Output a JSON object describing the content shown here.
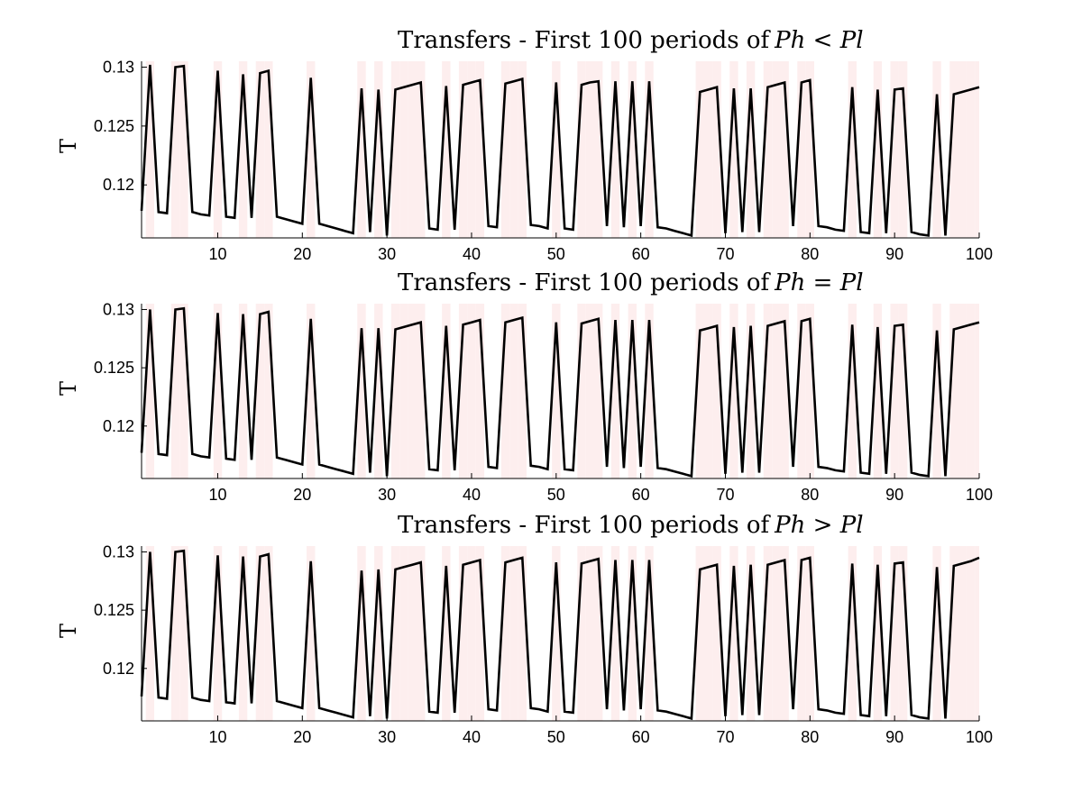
{
  "colors": {
    "band": "#fdeeee",
    "line": "#000000",
    "axis": "#000000",
    "background": "#ffffff"
  },
  "chart_data": [
    {
      "type": "line",
      "title": "Transfers - First 100 periods of",
      "title_math": "Ph < Pl",
      "ylabel": "T",
      "xlim": [
        1,
        100
      ],
      "ylim": [
        0.1155,
        0.1305
      ],
      "xticks": [
        10,
        20,
        30,
        40,
        50,
        60,
        70,
        80,
        90,
        100
      ],
      "yticks": [
        0.12,
        0.125,
        0.13
      ],
      "ytick_labels": [
        "0.12",
        "0.125",
        "0.13"
      ],
      "high_state_periods": [
        2,
        5,
        6,
        10,
        13,
        15,
        16,
        21,
        27,
        29,
        31,
        32,
        33,
        34,
        37,
        39,
        40,
        41,
        44,
        45,
        46,
        50,
        53,
        54,
        55,
        57,
        59,
        61,
        67,
        68,
        69,
        71,
        73,
        75,
        76,
        77,
        79,
        80,
        85,
        88,
        90,
        91,
        95,
        97,
        98,
        99,
        100
      ],
      "grid": false,
      "series": [
        {
          "x": [
            1,
            2,
            3,
            4,
            5,
            6,
            7,
            8,
            9,
            10,
            11,
            12,
            13,
            14,
            15,
            16,
            17,
            18,
            19,
            20,
            21,
            22,
            23,
            24,
            25,
            26,
            27,
            28,
            29,
            30,
            31,
            32,
            33,
            34,
            35,
            36,
            37,
            38,
            39,
            40,
            41,
            42,
            43,
            44,
            45,
            46,
            47,
            48,
            49,
            50,
            51,
            52,
            53,
            54,
            55,
            56,
            57,
            58,
            59,
            60,
            61,
            62,
            63,
            64,
            65,
            66,
            67,
            68,
            69,
            70,
            71,
            72,
            73,
            74,
            75,
            76,
            77,
            78,
            79,
            80,
            81,
            82,
            83,
            84,
            85,
            86,
            87,
            88,
            89,
            90,
            91,
            92,
            93,
            94,
            95,
            96,
            97,
            98,
            99,
            100
          ],
          "values": [
            0.1178,
            0.1302,
            0.1177,
            0.1176,
            0.13,
            0.1301,
            0.1177,
            0.1175,
            0.1174,
            0.1297,
            0.1173,
            0.1172,
            0.1294,
            0.1172,
            0.1295,
            0.1297,
            0.1173,
            0.1171,
            0.1169,
            0.1167,
            0.1291,
            0.1167,
            0.1165,
            0.1163,
            0.1161,
            0.1159,
            0.1282,
            0.116,
            0.1281,
            0.1157,
            0.1281,
            0.1283,
            0.1285,
            0.1287,
            0.1163,
            0.1162,
            0.1284,
            0.1162,
            0.1285,
            0.1287,
            0.1289,
            0.1165,
            0.1164,
            0.1286,
            0.1288,
            0.129,
            0.1166,
            0.1165,
            0.1163,
            0.1287,
            0.1163,
            0.1162,
            0.1285,
            0.1287,
            0.1288,
            0.1165,
            0.1288,
            0.1164,
            0.1288,
            0.1165,
            0.1288,
            0.1164,
            0.1163,
            0.1161,
            0.1159,
            0.1157,
            0.1279,
            0.1281,
            0.1283,
            0.1159,
            0.1282,
            0.116,
            0.1282,
            0.116,
            0.1283,
            0.1285,
            0.1287,
            0.1165,
            0.1287,
            0.1289,
            0.1165,
            0.1164,
            0.1162,
            0.1161,
            0.1283,
            0.116,
            0.1159,
            0.1281,
            0.1159,
            0.1281,
            0.1282,
            0.116,
            0.1158,
            0.1157,
            0.1277,
            0.1157,
            0.1277,
            0.1279,
            0.1281,
            0.1283
          ]
        }
      ]
    },
    {
      "type": "line",
      "title": "Transfers - First 100 periods of",
      "title_math": "Ph = Pl",
      "ylabel": "T",
      "xlim": [
        1,
        100
      ],
      "ylim": [
        0.1155,
        0.1305
      ],
      "xticks": [
        10,
        20,
        30,
        40,
        50,
        60,
        70,
        80,
        90,
        100
      ],
      "yticks": [
        0.12,
        0.125,
        0.13
      ],
      "ytick_labels": [
        "0.12",
        "0.125",
        "0.13"
      ],
      "high_state_periods": [
        2,
        5,
        6,
        10,
        13,
        15,
        16,
        21,
        27,
        29,
        31,
        32,
        33,
        34,
        37,
        39,
        40,
        41,
        44,
        45,
        46,
        50,
        53,
        54,
        55,
        57,
        59,
        61,
        67,
        68,
        69,
        71,
        73,
        75,
        76,
        77,
        79,
        80,
        85,
        88,
        90,
        91,
        95,
        97,
        98,
        99,
        100
      ],
      "grid": false,
      "series": [
        {
          "x": [
            1,
            2,
            3,
            4,
            5,
            6,
            7,
            8,
            9,
            10,
            11,
            12,
            13,
            14,
            15,
            16,
            17,
            18,
            19,
            20,
            21,
            22,
            23,
            24,
            25,
            26,
            27,
            28,
            29,
            30,
            31,
            32,
            33,
            34,
            35,
            36,
            37,
            38,
            39,
            40,
            41,
            42,
            43,
            44,
            45,
            46,
            47,
            48,
            49,
            50,
            51,
            52,
            53,
            54,
            55,
            56,
            57,
            58,
            59,
            60,
            61,
            62,
            63,
            64,
            65,
            66,
            67,
            68,
            69,
            70,
            71,
            72,
            73,
            74,
            75,
            76,
            77,
            78,
            79,
            80,
            81,
            82,
            83,
            84,
            85,
            86,
            87,
            88,
            89,
            90,
            91,
            92,
            93,
            94,
            95,
            96,
            97,
            98,
            99,
            100
          ],
          "values": [
            0.1177,
            0.13,
            0.1176,
            0.1175,
            0.13,
            0.1301,
            0.1176,
            0.1174,
            0.1173,
            0.1297,
            0.1172,
            0.1171,
            0.1296,
            0.1171,
            0.1296,
            0.1298,
            0.1173,
            0.1171,
            0.1169,
            0.1167,
            0.1292,
            0.1167,
            0.1165,
            0.1163,
            0.1161,
            0.1159,
            0.1284,
            0.116,
            0.1284,
            0.1157,
            0.1283,
            0.1285,
            0.1287,
            0.1289,
            0.1163,
            0.1162,
            0.1286,
            0.1162,
            0.1287,
            0.1289,
            0.1291,
            0.1165,
            0.1164,
            0.1289,
            0.1291,
            0.1293,
            0.1166,
            0.1165,
            0.1163,
            0.1289,
            0.1163,
            0.1162,
            0.1288,
            0.129,
            0.1292,
            0.1165,
            0.1291,
            0.1164,
            0.1291,
            0.1165,
            0.1291,
            0.1164,
            0.1163,
            0.1161,
            0.1159,
            0.1157,
            0.1282,
            0.1284,
            0.1286,
            0.1159,
            0.1285,
            0.116,
            0.1286,
            0.116,
            0.1286,
            0.1288,
            0.129,
            0.1165,
            0.129,
            0.1292,
            0.1165,
            0.1164,
            0.1162,
            0.1161,
            0.1287,
            0.116,
            0.1159,
            0.1285,
            0.1159,
            0.1286,
            0.1287,
            0.116,
            0.1158,
            0.1157,
            0.1282,
            0.1157,
            0.1283,
            0.1285,
            0.1287,
            0.1289
          ]
        }
      ]
    },
    {
      "type": "line",
      "title": "Transfers - First 100 periods of",
      "title_math": "Ph > Pl",
      "ylabel": "T",
      "xlim": [
        1,
        100
      ],
      "ylim": [
        0.1155,
        0.1305
      ],
      "xticks": [
        10,
        20,
        30,
        40,
        50,
        60,
        70,
        80,
        90,
        100
      ],
      "yticks": [
        0.12,
        0.125,
        0.13
      ],
      "ytick_labels": [
        "0.12",
        "0.125",
        "0.13"
      ],
      "high_state_periods": [
        2,
        5,
        6,
        10,
        13,
        15,
        16,
        21,
        27,
        29,
        31,
        32,
        33,
        34,
        37,
        39,
        40,
        41,
        44,
        45,
        46,
        50,
        53,
        54,
        55,
        57,
        59,
        61,
        67,
        68,
        69,
        71,
        73,
        75,
        76,
        77,
        79,
        80,
        85,
        88,
        90,
        91,
        95,
        97,
        98,
        99,
        100
      ],
      "grid": false,
      "series": [
        {
          "x": [
            1,
            2,
            3,
            4,
            5,
            6,
            7,
            8,
            9,
            10,
            11,
            12,
            13,
            14,
            15,
            16,
            17,
            18,
            19,
            20,
            21,
            22,
            23,
            24,
            25,
            26,
            27,
            28,
            29,
            30,
            31,
            32,
            33,
            34,
            35,
            36,
            37,
            38,
            39,
            40,
            41,
            42,
            43,
            44,
            45,
            46,
            47,
            48,
            49,
            50,
            51,
            52,
            53,
            54,
            55,
            56,
            57,
            58,
            59,
            60,
            61,
            62,
            63,
            64,
            65,
            66,
            67,
            68,
            69,
            70,
            71,
            72,
            73,
            74,
            75,
            76,
            77,
            78,
            79,
            80,
            81,
            82,
            83,
            84,
            85,
            86,
            87,
            88,
            89,
            90,
            91,
            92,
            93,
            94,
            95,
            96,
            97,
            98,
            99,
            100
          ],
          "values": [
            0.1176,
            0.13,
            0.1175,
            0.1174,
            0.13,
            0.1301,
            0.1175,
            0.1173,
            0.1172,
            0.1297,
            0.1171,
            0.117,
            0.1296,
            0.117,
            0.1296,
            0.1298,
            0.1172,
            0.117,
            0.1168,
            0.1166,
            0.1292,
            0.1166,
            0.1164,
            0.1162,
            0.116,
            0.1158,
            0.1284,
            0.1159,
            0.1285,
            0.1157,
            0.1285,
            0.1287,
            0.1289,
            0.1291,
            0.1163,
            0.1162,
            0.1288,
            0.1162,
            0.1289,
            0.1291,
            0.1293,
            0.1165,
            0.1164,
            0.1291,
            0.1293,
            0.1295,
            0.1166,
            0.1165,
            0.1163,
            0.1291,
            0.1163,
            0.1162,
            0.129,
            0.1292,
            0.1294,
            0.1165,
            0.1293,
            0.1164,
            0.1293,
            0.1165,
            0.1293,
            0.1164,
            0.1163,
            0.1161,
            0.1159,
            0.1157,
            0.1285,
            0.1287,
            0.1289,
            0.1159,
            0.1288,
            0.116,
            0.1289,
            0.116,
            0.1289,
            0.1291,
            0.1293,
            0.1165,
            0.1293,
            0.1295,
            0.1165,
            0.1164,
            0.1162,
            0.1161,
            0.129,
            0.116,
            0.1159,
            0.1289,
            0.1159,
            0.129,
            0.1291,
            0.116,
            0.1158,
            0.1157,
            0.1287,
            0.1157,
            0.1288,
            0.129,
            0.1292,
            0.1295
          ]
        }
      ]
    }
  ]
}
